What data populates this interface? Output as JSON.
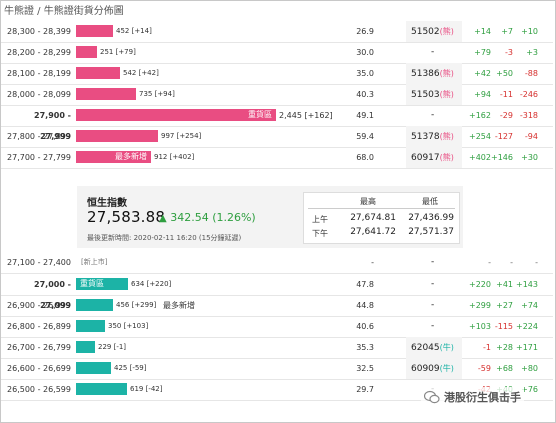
{
  "breadcrumb": "牛熊證 / 牛熊證街貨分佈圖",
  "colors": {
    "bull": "#e94d82",
    "bear": "#1cb3a6",
    "up": "#2e9e3f",
    "down": "#d6302e"
  },
  "bull_rows": [
    {
      "range": "28,300 - 28,399",
      "bar_tag": "",
      "qty": "452 [+14]",
      "pct": "26.9",
      "code": "51502",
      "kind": "(熊)",
      "c1": "+14",
      "c2": "+7",
      "c3": "+10"
    },
    {
      "range": "28,200 - 28,299",
      "bar_tag": "",
      "qty": "251 [+79]",
      "pct": "30.0",
      "code": "-",
      "kind": "",
      "c1": "+79",
      "c2": "-3",
      "c3": "+3"
    },
    {
      "range": "28,100 - 28,199",
      "bar_tag": "",
      "qty": "542 [+42]",
      "pct": "35.0",
      "code": "51386",
      "kind": "(熊)",
      "c1": "+42",
      "c2": "+50",
      "c3": "-88"
    },
    {
      "range": "28,000 - 28,099",
      "bar_tag": "",
      "qty": "735 [+94]",
      "pct": "40.3",
      "code": "51503",
      "kind": "(熊)",
      "c1": "+94",
      "c2": "-11",
      "c3": "-246"
    },
    {
      "range": "27,900 - 27,999",
      "bar_tag": "重貨區",
      "qty": "2,445 [+162]",
      "pct": "49.1",
      "code": "-",
      "kind": "",
      "c1": "+162",
      "c2": "-29",
      "c3": "-318"
    },
    {
      "range": "27,800 - 27,899",
      "bar_tag": "",
      "qty": "997 [+254]",
      "pct": "59.4",
      "code": "51378",
      "kind": "(熊)",
      "c1": "+254",
      "c2": "-127",
      "c3": "-94"
    },
    {
      "range": "27,700 - 27,799",
      "bar_tag": "最多新增",
      "qty": "912 [+402]",
      "pct": "68.0",
      "code": "60917",
      "kind": "(熊)",
      "c1": "+402",
      "c2": "+146",
      "c3": "+30"
    }
  ],
  "index_panel": {
    "title": "恒生指數",
    "value": "27,583.88",
    "arrow": "▲",
    "change": "342.54 (1.26%)",
    "update": "最後更新時間: 2020-02-11 16:20 (15分鐘延遲)",
    "col_high": "最高",
    "col_low": "最低",
    "rows": [
      {
        "label": "上午",
        "high": "27,674.81",
        "low": "27,436.99"
      },
      {
        "label": "下午",
        "high": "27,641.72",
        "low": "27,571.37"
      }
    ]
  },
  "empty_row": {
    "range": "27,100 - 27,400",
    "tag": "[新上市]",
    "pct": "-",
    "code": "-",
    "c1": "-",
    "c2": "-",
    "c3": "-"
  },
  "bear_rows": [
    {
      "range": "27,000 - 27,099",
      "bar_tag": "重貨區",
      "qty": "634 [+220]",
      "pct": "47.8",
      "code": "-",
      "kind": "",
      "c1": "+220",
      "c2": "+41",
      "c3": "+143"
    },
    {
      "range": "26,900 - 26,999",
      "bar_tag": "",
      "qty": "456 [+299]",
      "extra": "最多新增",
      "pct": "44.8",
      "code": "-",
      "kind": "",
      "c1": "+299",
      "c2": "+27",
      "c3": "+74"
    },
    {
      "range": "26,800 - 26,899",
      "bar_tag": "",
      "qty": "350 [+103]",
      "pct": "40.6",
      "code": "-",
      "kind": "",
      "c1": "+103",
      "c2": "-115",
      "c3": "+224"
    },
    {
      "range": "26,700 - 26,799",
      "bar_tag": "",
      "qty": "229 [-1]",
      "pct": "35.3",
      "code": "62045",
      "kind": "(牛)",
      "c1": "-1",
      "c2": "+28",
      "c3": "+171"
    },
    {
      "range": "26,600 - 26,699",
      "bar_tag": "",
      "qty": "425 [-59]",
      "pct": "32.5",
      "code": "60909",
      "kind": "(牛)",
      "c1": "-59",
      "c2": "+68",
      "c3": "+80"
    },
    {
      "range": "26,500 - 26,599",
      "bar_tag": "",
      "qty": "619 [-42]",
      "pct": "29.7",
      "code": "-",
      "kind": "",
      "c1": "-42",
      "c2": "+40",
      "c3": "+76"
    }
  ],
  "watermark": "港股衍生俱击手"
}
